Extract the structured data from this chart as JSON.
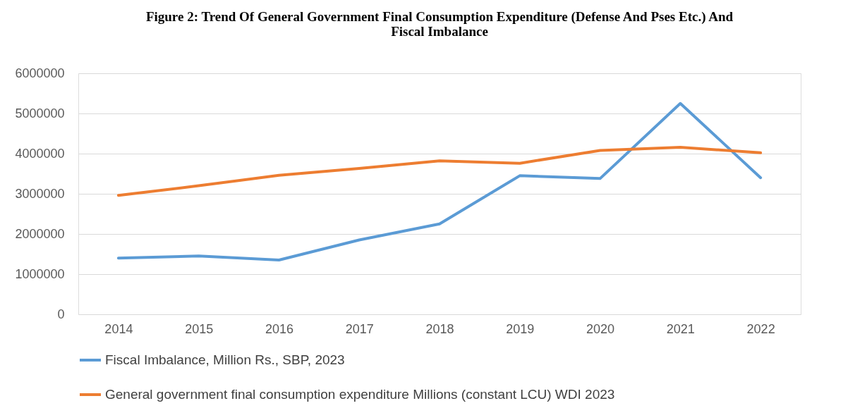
{
  "chart_data": {
    "type": "line",
    "title": "Figure 2: Trend Of General Government Final Consumption Expenditure (Defense And Pses Etc.) And Fiscal Imbalance",
    "categories": [
      "2014",
      "2015",
      "2016",
      "2017",
      "2018",
      "2019",
      "2020",
      "2021",
      "2022"
    ],
    "series": [
      {
        "name": "Fiscal Imbalance, Million Rs., SBP, 2023",
        "color": "#5b9bd5",
        "values": [
          1400000,
          1450000,
          1350000,
          1850000,
          2250000,
          3450000,
          3380000,
          5250000,
          3400000
        ]
      },
      {
        "name": "General government final consumption expenditure Millions (constant LCU) WDI 2023",
        "color": "#ed7d31",
        "values": [
          2960000,
          3200000,
          3460000,
          3630000,
          3820000,
          3760000,
          4080000,
          4160000,
          4020000
        ]
      }
    ],
    "ylim": [
      0,
      6000000
    ],
    "yticks": [
      0,
      1000000,
      2000000,
      3000000,
      4000000,
      5000000,
      6000000
    ],
    "grid": "y",
    "legend": "bottom",
    "marker": "none",
    "line_style": "solid"
  }
}
